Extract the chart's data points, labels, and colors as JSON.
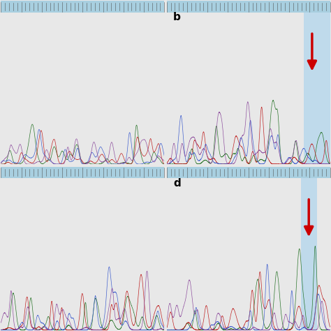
{
  "bg_light_blue": "#cce4f0",
  "bg_white": "#ffffff",
  "highlight_blue": "#b8d8ec",
  "border_color": "#888888",
  "arrow_color": "#cc0000",
  "label_b": "b",
  "label_d": "d",
  "ruler_color": "#a8cfe0",
  "ruler_tick_color": "#555555",
  "fig_bg": "#e8e8e8",
  "trace_colors": [
    "#1a6b1a",
    "#bb1111",
    "#3355cc",
    "#884499"
  ],
  "trace_linewidth": 0.5,
  "trace_alpha": 0.9
}
